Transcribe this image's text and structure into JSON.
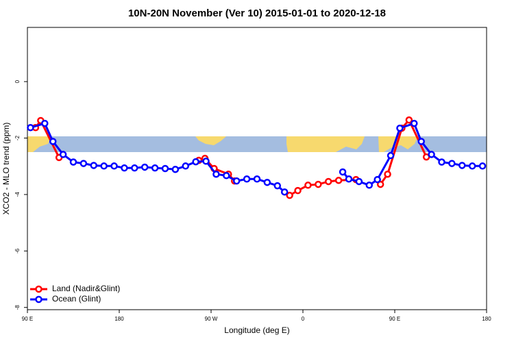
{
  "chart_data": {
    "type": "line",
    "title": "10N-20N November (Ver 10)   2015-01-01 to 2020-12-18",
    "x_label": "Longitude (deg E)",
    "y_label": "XCO2 - MLO trend (ppm)",
    "xlim": [
      90,
      540
    ],
    "ylim": [
      -8.08,
      1.92
    ],
    "xticks": [
      {
        "value": 90,
        "label": "90 E"
      },
      {
        "value": 180,
        "label": "180"
      },
      {
        "value": 270,
        "label": "90 W"
      },
      {
        "value": 360,
        "label": "0"
      },
      {
        "value": 450,
        "label": "90 E"
      },
      {
        "value": 540,
        "label": "180"
      }
    ],
    "yticks": [
      0,
      -2,
      -4,
      -6,
      -8
    ],
    "legend": "bottom-left",
    "series": [
      {
        "name": "Land (Nadir&Glint)",
        "color": "#ff0000",
        "x": [
          98,
          103,
          121,
          190,
          258,
          264,
          273,
          287,
          293,
          320,
          347,
          355,
          365,
          375,
          385,
          395,
          412,
          425,
          436,
          443,
          457,
          464,
          481
        ],
        "values": [
          -1.63,
          -1.38,
          -2.69,
          null,
          -2.79,
          -2.72,
          -3.08,
          -3.28,
          -3.52,
          null,
          -4.03,
          -3.86,
          -3.67,
          -3.64,
          -3.54,
          -3.5,
          -3.47,
          null,
          -3.64,
          -3.28,
          -1.65,
          -1.36,
          -2.67
        ]
      },
      {
        "name": "Ocean (Glint)",
        "color": "#0000ff",
        "x": [
          93,
          107,
          115,
          125,
          135,
          145,
          155,
          165,
          175,
          185,
          195,
          205,
          215,
          225,
          235,
          245,
          255,
          265,
          275,
          285,
          295,
          305,
          315,
          325,
          335,
          342,
          370,
          399,
          405,
          415,
          425,
          433,
          446,
          455,
          469,
          476,
          486,
          496,
          506,
          516,
          526,
          536
        ],
        "values": [
          -1.63,
          -1.48,
          -2.12,
          -2.58,
          -2.85,
          -2.9,
          -2.97,
          -2.99,
          -2.99,
          -3.06,
          -3.06,
          -3.03,
          -3.06,
          -3.08,
          -3.11,
          -2.99,
          -2.84,
          -2.82,
          -3.28,
          -3.33,
          -3.52,
          -3.45,
          -3.45,
          -3.57,
          -3.69,
          -3.91,
          null,
          -3.2,
          -3.45,
          -3.54,
          -3.67,
          -3.47,
          -2.62,
          -1.65,
          -1.48,
          -2.12,
          -2.58,
          -2.85,
          -2.9,
          -2.97,
          -2.99,
          -2.99
        ]
      }
    ]
  }
}
